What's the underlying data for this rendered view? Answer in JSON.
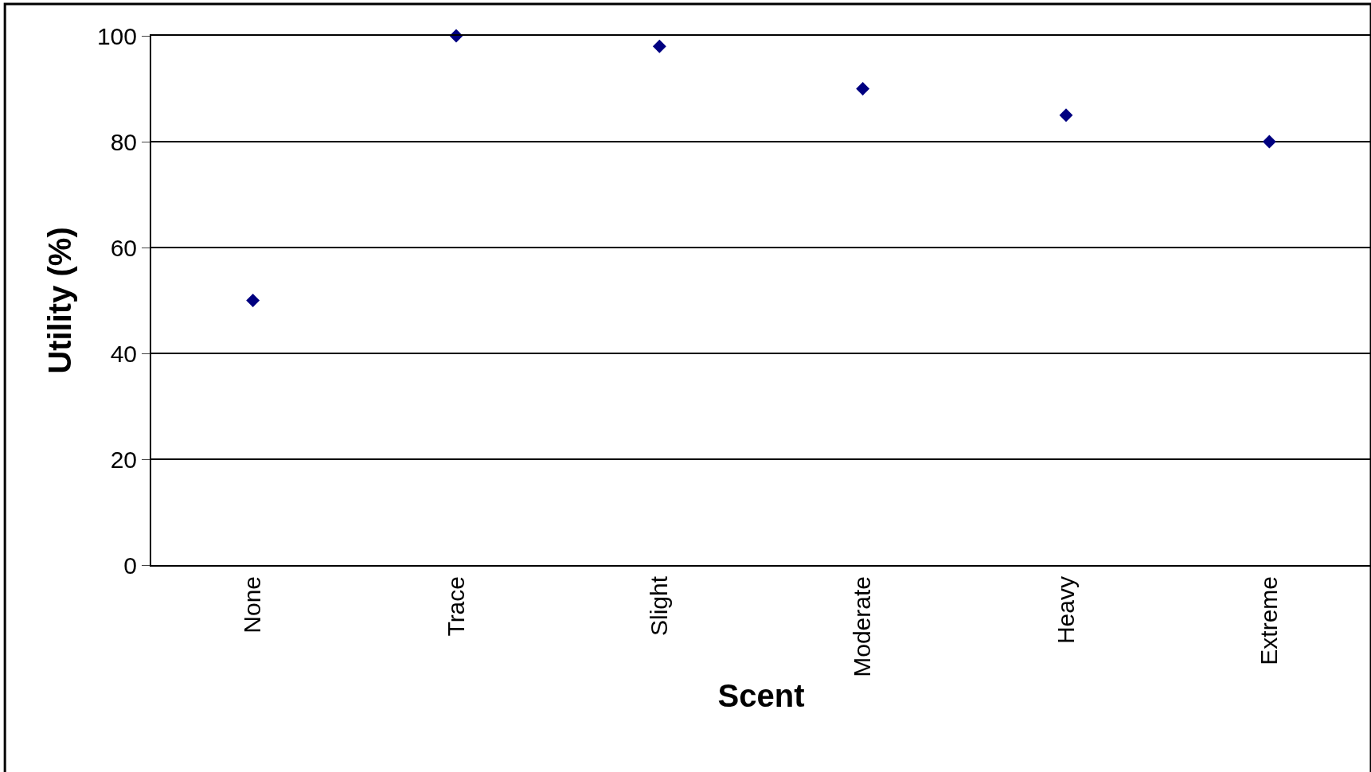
{
  "chart_data": {
    "type": "scatter",
    "xlabel": "Scent",
    "ylabel": "Utility (%)",
    "categories": [
      "None",
      "Trace",
      "Slight",
      "Moderate",
      "Heavy",
      "Extreme"
    ],
    "series": [
      {
        "color": "#000080",
        "values": [
          50,
          100,
          98,
          90,
          85,
          80
        ]
      }
    ],
    "ylim": [
      0,
      100
    ],
    "yticks": [
      0,
      20,
      40,
      60,
      80,
      100
    ],
    "grid": "y",
    "marker": "diamond"
  }
}
